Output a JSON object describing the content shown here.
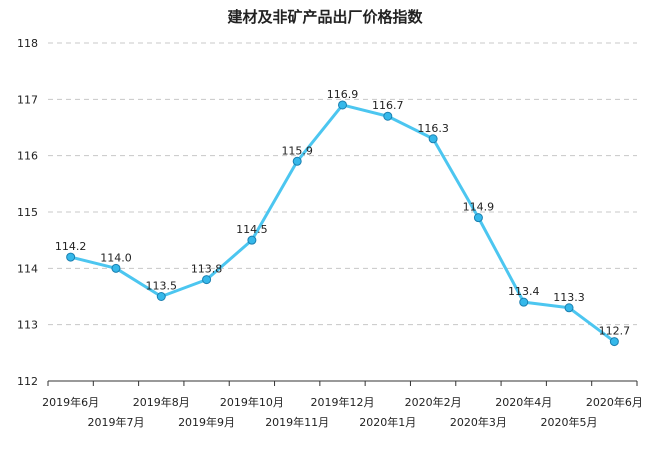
{
  "chart_data": {
    "type": "line",
    "title": "建材及非矿产品出厂价格指数",
    "xlabel": "",
    "ylabel": "",
    "categories": [
      "2019年6月",
      "2019年7月",
      "2019年8月",
      "2019年9月",
      "2019年10月",
      "2019年11月",
      "2019年12月",
      "2020年1月",
      "2020年2月",
      "2020年3月",
      "2020年4月",
      "2020年5月",
      "2020年6月"
    ],
    "series": [
      {
        "values": [
          114.2,
          114.0,
          113.5,
          113.8,
          114.5,
          115.9,
          116.9,
          116.7,
          116.3,
          114.9,
          113.4,
          113.3,
          112.7
        ],
        "labels": [
          "114.2",
          "114.0",
          "113.5",
          "113.8",
          "114.5",
          "115.9",
          "116.9",
          "116.7",
          "116.3",
          "114.9",
          "113.4",
          "113.3",
          "112.7"
        ],
        "color": "#4cc6f0"
      }
    ],
    "ylim": [
      112,
      118
    ],
    "yticks": [
      "112",
      "113",
      "114",
      "115",
      "116",
      "117",
      "118"
    ],
    "grid": true,
    "legend": "none"
  }
}
